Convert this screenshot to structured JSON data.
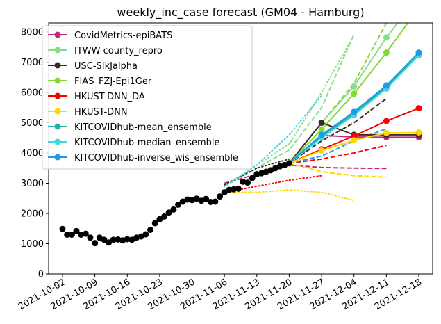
{
  "chart_data": {
    "type": "line",
    "title": "weekly_inc_case forecast (GM04 - Hamburg)",
    "xlabel": "",
    "ylabel": "",
    "ylim": [
      0,
      8300
    ],
    "yticks": [
      0,
      1000,
      2000,
      3000,
      4000,
      5000,
      6000,
      7000,
      8000
    ],
    "xlim": [
      "2021-09-29",
      "2021-12-21"
    ],
    "xticks": [
      "2021-10-02",
      "2021-10-09",
      "2021-10-16",
      "2021-10-23",
      "2021-10-30",
      "2021-11-06",
      "2021-11-13",
      "2021-11-20",
      "2021-11-27",
      "2021-12-04",
      "2021-12-11",
      "2021-12-18"
    ],
    "grid": false,
    "legend_position": "top-left",
    "observed": {
      "color": "#000000",
      "x": [
        "2021-10-02",
        "2021-10-03",
        "2021-10-04",
        "2021-10-05",
        "2021-10-06",
        "2021-10-07",
        "2021-10-08",
        "2021-10-09",
        "2021-10-10",
        "2021-10-11",
        "2021-10-12",
        "2021-10-13",
        "2021-10-14",
        "2021-10-15",
        "2021-10-16",
        "2021-10-17",
        "2021-10-18",
        "2021-10-19",
        "2021-10-20",
        "2021-10-21",
        "2021-10-22",
        "2021-10-23",
        "2021-10-24",
        "2021-10-25",
        "2021-10-26",
        "2021-10-27",
        "2021-10-28",
        "2021-10-29",
        "2021-10-30",
        "2021-10-31",
        "2021-11-01",
        "2021-11-02",
        "2021-11-03",
        "2021-11-04",
        "2021-11-05",
        "2021-11-06",
        "2021-11-07",
        "2021-11-08",
        "2021-11-09",
        "2021-11-10",
        "2021-11-11",
        "2021-11-12",
        "2021-11-13",
        "2021-11-14",
        "2021-11-15",
        "2021-11-16",
        "2021-11-17",
        "2021-11-18",
        "2021-11-19",
        "2021-11-20"
      ],
      "y": [
        1490,
        1300,
        1300,
        1420,
        1300,
        1330,
        1200,
        1020,
        1200,
        1130,
        1040,
        1130,
        1140,
        1110,
        1150,
        1130,
        1200,
        1240,
        1310,
        1460,
        1680,
        1810,
        1900,
        2030,
        2130,
        2290,
        2390,
        2460,
        2440,
        2490,
        2420,
        2480,
        2380,
        2390,
        2560,
        2700,
        2780,
        2800,
        2820,
        3050,
        3020,
        3170,
        3300,
        3330,
        3380,
        3430,
        3500,
        3560,
        3600,
        3660
      ]
    },
    "forecast_dates": [
      "2021-11-20",
      "2021-11-27",
      "2021-12-04",
      "2021-12-11",
      "2021-12-18"
    ],
    "series": [
      {
        "name": "CovidMetrics-epiBATS",
        "color": "#c0297f",
        "values": [
          3660,
          4580,
          4530,
          4520,
          4520
        ],
        "bands": [
          {
            "style": "dashed",
            "x": [
              "2021-11-06",
              "2021-11-20",
              "2021-11-27",
              "2021-12-04",
              "2021-12-11"
            ],
            "values": [
              3000,
              3600,
              3520,
              3500,
              3490
            ]
          }
        ]
      },
      {
        "name": "ITWW-county_repro",
        "color": "#88dd88",
        "values": [
          3660,
          5000,
          6200,
          7820,
          9200
        ],
        "bands": [
          {
            "style": "dashed",
            "x": [
              "2021-11-06",
              "2021-11-20",
              "2021-11-27",
              "2021-12-04"
            ],
            "values": [
              2900,
              4100,
              5500,
              7920
            ]
          },
          {
            "style": "dotted",
            "x": [
              "2021-11-06",
              "2021-11-20",
              "2021-11-27",
              "2021-12-04"
            ],
            "values": [
              2900,
              4300,
              6000,
              7900
            ]
          }
        ]
      },
      {
        "name": "USC-SIkJalpha",
        "color": "#3b2d24",
        "values": [
          3660,
          5000,
          4600,
          4600,
          4600
        ],
        "bands": [
          {
            "style": "dashed",
            "x": [
              "2021-11-20",
              "2021-11-27",
              "2021-12-04",
              "2021-12-11"
            ],
            "values": [
              3660,
              4400,
              5000,
              5800
            ]
          },
          {
            "style": "dotted",
            "x": [
              "2021-11-06",
              "2021-11-13",
              "2021-11-20"
            ],
            "values": [
              2950,
              3500,
              3800
            ]
          }
        ]
      },
      {
        "name": "FIAS_FZJ-Epi1Ger",
        "color": "#7fdc2e",
        "values": [
          3660,
          4780,
          5960,
          7320,
          8800
        ],
        "bands": [
          {
            "style": "dashed",
            "x": [
              "2021-11-20",
              "2021-11-27",
              "2021-12-04",
              "2021-12-11"
            ],
            "values": [
              3660,
              5000,
              6300,
              8300
            ]
          }
        ]
      },
      {
        "name": "HKUST-DNN_DA",
        "color": "#ff0000",
        "values": [
          3660,
          4120,
          4560,
          5060,
          5480
        ],
        "bands": [
          {
            "style": "dashed",
            "x": [
              "2021-11-20",
              "2021-11-27",
              "2021-12-04",
              "2021-12-11"
            ],
            "values": [
              3660,
              3800,
              4000,
              4250
            ]
          },
          {
            "style": "dotted",
            "x": [
              "2021-11-06",
              "2021-11-13",
              "2021-11-20",
              "2021-11-27"
            ],
            "values": [
              2700,
              2900,
              3100,
              3250
            ]
          }
        ]
      },
      {
        "name": "HKUST-DNN",
        "color": "#ffd700",
        "values": [
          3660,
          4080,
          4420,
          4660,
          4680
        ],
        "bands": [
          {
            "style": "dashed",
            "x": [
              "2021-11-20",
              "2021-11-27",
              "2021-12-04",
              "2021-12-11"
            ],
            "values": [
              3660,
              3380,
              3250,
              3200
            ]
          },
          {
            "style": "dotted",
            "x": [
              "2021-11-06",
              "2021-11-13",
              "2021-11-20",
              "2021-11-27",
              "2021-12-04"
            ],
            "values": [
              2700,
              2700,
              2780,
              2700,
              2430
            ]
          }
        ]
      },
      {
        "name": "KITCOVIDhub-mean_ensemble",
        "color": "#20b2aa",
        "values": [
          3660,
          4550,
          5300,
          6180,
          7250
        ],
        "bands": []
      },
      {
        "name": "KITCOVIDhub-median_ensemble",
        "color": "#40d8e0",
        "values": [
          3660,
          4500,
          5250,
          6130,
          7230
        ],
        "bands": [
          {
            "style": "dashed",
            "x": [
              "2021-11-20",
              "2021-11-27",
              "2021-12-04",
              "2021-12-11"
            ],
            "values": [
              3660,
              4600,
              5300,
              6200
            ]
          },
          {
            "style": "dotted",
            "x": [
              "2021-11-06",
              "2021-11-13",
              "2021-11-20",
              "2021-11-27"
            ],
            "values": [
              2900,
              3600,
              4600,
              5900
            ]
          }
        ]
      },
      {
        "name": "KITCOVIDhub-inverse_wis_ensemble",
        "color": "#1e9be8",
        "values": [
          3660,
          4600,
          5360,
          6230,
          7320
        ],
        "bands": [
          {
            "style": "dashed",
            "x": [
              "2021-11-20",
              "2021-11-27",
              "2021-12-04",
              "2021-12-11"
            ],
            "values": [
              3660,
              3900,
              4400,
              4800
            ]
          }
        ]
      }
    ]
  }
}
